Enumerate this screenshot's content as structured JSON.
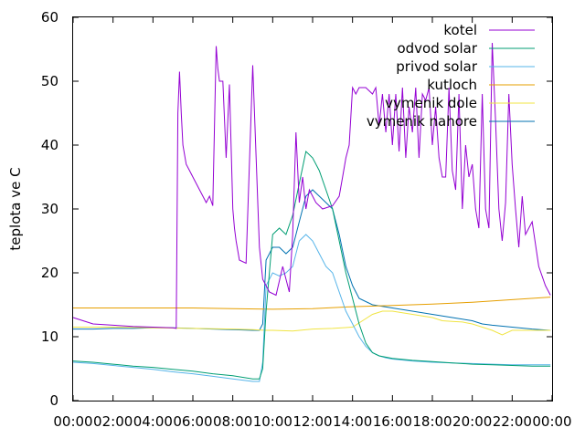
{
  "chart_data": {
    "type": "line",
    "title": "",
    "xlabel": "",
    "ylabel": "teplota ve C",
    "xlim": [
      "00:00",
      "24:00"
    ],
    "ylim": [
      0,
      60
    ],
    "x_ticks": [
      "00:00",
      "02:00",
      "04:00",
      "06:00",
      "08:00",
      "10:00",
      "12:00",
      "14:00",
      "16:00",
      "18:00",
      "20:00",
      "22:00",
      "00:00"
    ],
    "y_ticks": [
      "0",
      "10",
      "20",
      "30",
      "40",
      "50",
      "60"
    ],
    "grid": false,
    "legend_position": "top-right",
    "series": [
      {
        "name": "kotel",
        "color": "#9400d3",
        "x": [
          "00:00",
          "00:30",
          "01:00",
          "02:00",
          "03:00",
          "04:00",
          "05:00",
          "05:10",
          "05:15",
          "05:20",
          "05:25",
          "05:30",
          "05:40",
          "05:50",
          "06:00",
          "06:20",
          "06:40",
          "06:50",
          "07:00",
          "07:10",
          "07:15",
          "07:20",
          "07:30",
          "07:40",
          "07:50",
          "08:00",
          "08:05",
          "08:10",
          "08:20",
          "08:40",
          "09:00",
          "09:20",
          "09:30",
          "09:50",
          "10:10",
          "10:30",
          "10:50",
          "11:00",
          "11:10",
          "11:20",
          "11:30",
          "11:40",
          "11:50",
          "12:00",
          "12:10",
          "12:30",
          "13:00",
          "13:20",
          "13:30",
          "13:40",
          "13:50",
          "14:00",
          "14:10",
          "14:20",
          "14:40",
          "15:00",
          "15:10",
          "15:20",
          "15:30",
          "15:40",
          "15:50",
          "16:00",
          "16:10",
          "16:20",
          "16:30",
          "16:40",
          "16:50",
          "17:00",
          "17:10",
          "17:20",
          "17:30",
          "17:40",
          "17:50",
          "18:00",
          "18:10",
          "18:20",
          "18:30",
          "18:40",
          "18:50",
          "19:00",
          "19:10",
          "19:20",
          "19:30",
          "19:40",
          "19:50",
          "20:00",
          "20:10",
          "20:20",
          "20:30",
          "20:40",
          "20:50",
          "21:00",
          "21:10",
          "21:20",
          "21:30",
          "21:40",
          "21:50",
          "22:00",
          "22:10",
          "22:20",
          "22:30",
          "22:40",
          "23:00",
          "23:20",
          "23:40",
          "23:55"
        ],
        "y": [
          13,
          12.5,
          12,
          11.8,
          11.6,
          11.5,
          11.4,
          11.3,
          45,
          51.5,
          45,
          40,
          37,
          36,
          35,
          33,
          31,
          32,
          30.5,
          55.5,
          52,
          50,
          50,
          38,
          49.5,
          30,
          27,
          25,
          22,
          21.5,
          52.5,
          24,
          19,
          17,
          16.5,
          21,
          17,
          26,
          42,
          31,
          35,
          30,
          33,
          32,
          31,
          30,
          30.5,
          32,
          35,
          38,
          40,
          49,
          48,
          49,
          49,
          48,
          49,
          43,
          48,
          42,
          48,
          40,
          48,
          39,
          49,
          38,
          46,
          42,
          49,
          38,
          48,
          47,
          49,
          40,
          46,
          38,
          35,
          35,
          49,
          36,
          33,
          48,
          30,
          40,
          35,
          37,
          30,
          27,
          48,
          30,
          27,
          56,
          44,
          30,
          25,
          31,
          48,
          37,
          30,
          24,
          32,
          26,
          28,
          21,
          18,
          16.5
        ]
      },
      {
        "name": "odvod solar",
        "color": "#009e73",
        "x": [
          "00:00",
          "01:00",
          "02:00",
          "03:00",
          "04:00",
          "05:00",
          "06:00",
          "07:00",
          "08:00",
          "09:00",
          "09:20",
          "09:30",
          "09:40",
          "10:00",
          "10:20",
          "10:40",
          "11:00",
          "11:20",
          "11:40",
          "12:00",
          "12:20",
          "12:40",
          "13:00",
          "13:20",
          "13:40",
          "14:00",
          "14:20",
          "14:40",
          "15:00",
          "15:20",
          "15:40",
          "16:00",
          "17:00",
          "18:00",
          "19:00",
          "20:00",
          "21:00",
          "22:00",
          "23:00",
          "23:55"
        ],
        "y": [
          6.2,
          6,
          5.7,
          5.4,
          5.2,
          4.9,
          4.6,
          4.2,
          3.9,
          3.4,
          3.4,
          5,
          14,
          26,
          27,
          26,
          29,
          34,
          39,
          38,
          36,
          33,
          30,
          25,
          20,
          16,
          12,
          9,
          7.5,
          7,
          6.8,
          6.6,
          6.3,
          6.1,
          5.9,
          5.7,
          5.6,
          5.5,
          5.4,
          5.4
        ]
      },
      {
        "name": "privod solar",
        "color": "#56b4e9",
        "x": [
          "00:00",
          "01:00",
          "02:00",
          "03:00",
          "04:00",
          "05:00",
          "06:00",
          "07:00",
          "08:00",
          "09:00",
          "09:20",
          "09:30",
          "09:40",
          "10:00",
          "10:20",
          "10:40",
          "11:00",
          "11:20",
          "11:40",
          "12:00",
          "12:20",
          "12:40",
          "13:00",
          "13:20",
          "13:40",
          "14:00",
          "14:20",
          "14:40",
          "15:00",
          "15:20",
          "15:40",
          "16:00",
          "17:00",
          "18:00",
          "19:00",
          "20:00",
          "21:00",
          "22:00",
          "23:00",
          "23:55"
        ],
        "y": [
          6,
          5.8,
          5.5,
          5.2,
          4.9,
          4.5,
          4.2,
          3.8,
          3.4,
          3,
          3,
          6,
          18,
          20,
          19.5,
          20,
          21,
          25,
          26,
          25,
          23,
          21,
          20,
          17,
          14,
          12,
          10,
          8.5,
          7.5,
          7,
          6.7,
          6.5,
          6.2,
          6,
          5.9,
          5.8,
          5.7,
          5.6,
          5.6,
          5.6
        ]
      },
      {
        "name": "kutloch",
        "color": "#e69f00",
        "x": [
          "00:00",
          "02:00",
          "04:00",
          "06:00",
          "08:00",
          "10:00",
          "12:00",
          "14:00",
          "16:00",
          "18:00",
          "20:00",
          "22:00",
          "23:55"
        ],
        "y": [
          14.5,
          14.5,
          14.5,
          14.5,
          14.4,
          14.3,
          14.4,
          14.7,
          14.9,
          15.1,
          15.4,
          15.8,
          16.2
        ]
      },
      {
        "name": "vymenik dole",
        "color": "#f0e442",
        "x": [
          "00:00",
          "02:00",
          "04:00",
          "06:00",
          "08:00",
          "09:00",
          "09:40",
          "10:00",
          "11:00",
          "12:00",
          "13:00",
          "14:00",
          "14:30",
          "15:00",
          "15:30",
          "16:00",
          "17:00",
          "18:00",
          "18:30",
          "19:00",
          "19:30",
          "20:00",
          "20:30",
          "21:00",
          "21:30",
          "22:00",
          "23:00",
          "23:55"
        ],
        "y": [
          11.5,
          11.5,
          11.4,
          11.3,
          11.2,
          11.1,
          11,
          11,
          10.9,
          11.2,
          11.3,
          11.5,
          12.5,
          13.5,
          14,
          14,
          13.5,
          13,
          12.5,
          12.4,
          12.3,
          12,
          11.5,
          11,
          10.3,
          11,
          11,
          11
        ]
      },
      {
        "name": "vymenik nahore",
        "color": "#0072b2",
        "x": [
          "00:00",
          "01:00",
          "02:00",
          "03:00",
          "04:00",
          "05:00",
          "06:00",
          "07:00",
          "08:00",
          "09:00",
          "09:20",
          "09:30",
          "09:40",
          "10:00",
          "10:20",
          "10:40",
          "11:00",
          "11:20",
          "11:40",
          "12:00",
          "12:20",
          "12:40",
          "13:00",
          "13:20",
          "13:40",
          "14:00",
          "14:20",
          "14:40",
          "15:00",
          "16:00",
          "17:00",
          "18:00",
          "19:00",
          "20:00",
          "20:30",
          "21:00",
          "22:00",
          "23:00",
          "23:55"
        ],
        "y": [
          11.2,
          11.2,
          11.3,
          11.3,
          11.4,
          11.4,
          11.3,
          11.2,
          11.1,
          11,
          11,
          12,
          22,
          24,
          24,
          23,
          24,
          28,
          32,
          33,
          32,
          31,
          30,
          26,
          21,
          18,
          16,
          15.5,
          15,
          14.5,
          14,
          13.5,
          13,
          12.5,
          12,
          11.8,
          11.5,
          11.2,
          11
        ]
      }
    ]
  }
}
